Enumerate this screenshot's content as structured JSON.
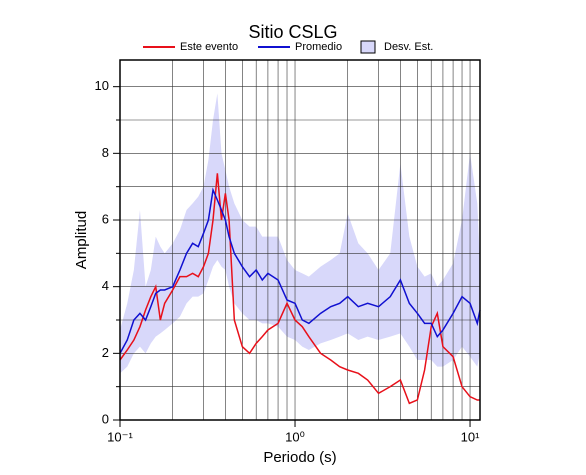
{
  "chart_data": {
    "type": "line",
    "title": "Sitio CSLG",
    "x_label": "Periodo (s)",
    "y_label": "Amplitud",
    "xscale": "log",
    "xlim": [
      0.1,
      11.4
    ],
    "ylim": [
      0,
      10.8
    ],
    "xticks": [
      {
        "value": 0.1,
        "label": "10⁻¹"
      },
      {
        "value": 1,
        "label": "10⁰"
      },
      {
        "value": 10,
        "label": "10¹"
      }
    ],
    "xgrid": [
      0.2,
      0.3,
      0.4,
      0.5,
      0.6,
      0.7,
      0.8,
      0.9,
      2,
      3,
      4,
      5,
      6,
      7,
      8,
      9
    ],
    "yticks": [
      0,
      2,
      4,
      6,
      8,
      10
    ],
    "ygrid": [
      1,
      3,
      5,
      7,
      9
    ],
    "grid": true,
    "legend": "top",
    "x": [
      0.1,
      0.11,
      0.12,
      0.13,
      0.14,
      0.15,
      0.16,
      0.17,
      0.18,
      0.2,
      0.22,
      0.24,
      0.26,
      0.28,
      0.3,
      0.32,
      0.34,
      0.36,
      0.38,
      0.4,
      0.42,
      0.45,
      0.5,
      0.55,
      0.6,
      0.65,
      0.7,
      0.8,
      0.9,
      1.0,
      1.1,
      1.2,
      1.4,
      1.6,
      1.8,
      2.0,
      2.3,
      2.6,
      3.0,
      3.5,
      4.0,
      4.5,
      5.0,
      5.5,
      6.0,
      6.5,
      7.0,
      8.0,
      9.0,
      10,
      11,
      11.4
    ],
    "series": [
      {
        "name": "Este evento",
        "color": "#e8101a",
        "values": [
          1.8,
          2.1,
          2.4,
          2.8,
          3.3,
          3.7,
          4.0,
          3.0,
          3.5,
          3.9,
          4.3,
          4.3,
          4.4,
          4.3,
          4.6,
          5.0,
          6.0,
          7.4,
          6.0,
          6.8,
          6.0,
          3.0,
          2.2,
          2.0,
          2.3,
          2.5,
          2.7,
          2.9,
          3.5,
          3.0,
          2.8,
          2.5,
          2.0,
          1.8,
          1.6,
          1.5,
          1.4,
          1.2,
          0.8,
          1.0,
          1.2,
          0.5,
          0.6,
          1.5,
          2.8,
          3.2,
          2.2,
          1.9,
          1.0,
          0.7,
          0.6,
          0.6
        ]
      },
      {
        "name": "Promedio",
        "color": "#1010d0",
        "values": [
          2.0,
          2.4,
          3.0,
          3.2,
          3.0,
          3.4,
          3.8,
          3.9,
          3.9,
          4.0,
          4.5,
          5.0,
          5.3,
          5.2,
          5.6,
          6.0,
          6.9,
          6.6,
          6.3,
          6.0,
          5.5,
          5.0,
          4.6,
          4.3,
          4.5,
          4.2,
          4.4,
          4.2,
          3.6,
          3.5,
          3.0,
          2.9,
          3.2,
          3.4,
          3.5,
          3.7,
          3.4,
          3.5,
          3.4,
          3.7,
          4.2,
          3.5,
          3.2,
          2.9,
          2.9,
          2.5,
          2.7,
          3.2,
          3.7,
          3.5,
          2.9,
          3.3
        ]
      }
    ],
    "band": {
      "name": "Desv. Est.",
      "color": "#d8d8fa",
      "lower": [
        1.4,
        1.6,
        2.0,
        2.2,
        2.0,
        2.3,
        2.5,
        2.6,
        2.7,
        2.9,
        3.1,
        3.5,
        3.7,
        3.7,
        3.8,
        4.2,
        4.6,
        4.8,
        4.6,
        4.5,
        4.0,
        3.5,
        3.2,
        3.0,
        3.0,
        2.9,
        2.9,
        2.8,
        2.5,
        2.4,
        2.2,
        2.1,
        2.3,
        2.4,
        2.5,
        2.6,
        2.4,
        2.5,
        2.4,
        2.5,
        2.6,
        2.2,
        1.8,
        1.8,
        1.8,
        1.6,
        1.6,
        1.8,
        2.2,
        1.9,
        1.6,
        2.0
      ],
      "upper": [
        2.7,
        3.5,
        4.5,
        6.3,
        4.0,
        4.5,
        5.5,
        5.2,
        5.0,
        5.3,
        5.7,
        6.3,
        6.5,
        6.7,
        7.0,
        7.8,
        9.0,
        9.8,
        8.0,
        7.5,
        7.0,
        6.5,
        6.0,
        5.8,
        5.8,
        5.5,
        5.5,
        5.5,
        4.8,
        4.5,
        4.4,
        4.3,
        4.6,
        4.8,
        5.0,
        6.2,
        5.3,
        5.0,
        4.5,
        5.0,
        7.7,
        5.5,
        4.6,
        4.3,
        4.4,
        4.0,
        4.2,
        4.7,
        6.0,
        8.0,
        6.5,
        4.7
      ]
    }
  }
}
